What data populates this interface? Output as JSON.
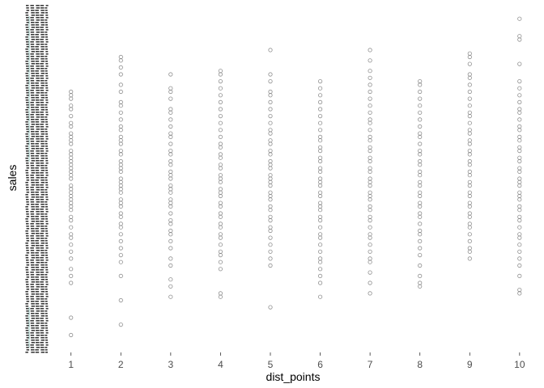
{
  "chart_data": {
    "type": "scatter",
    "title": "",
    "xlabel": "dist_points",
    "ylabel": "sales",
    "x_ticks": [
      1,
      2,
      3,
      4,
      5,
      6,
      7,
      8,
      9,
      10
    ],
    "y_tick_labels_note": "",
    "grid": false,
    "legend": "none",
    "xlim": [
      0.55,
      10.1
    ],
    "ylim": [
      0,
      1
    ],
    "marker": "open-circle",
    "series": [
      {
        "x": 1,
        "y": [
          0.05,
          0.1,
          0.2,
          0.22,
          0.24,
          0.27,
          0.29,
          0.31,
          0.33,
          0.34,
          0.36,
          0.38,
          0.39,
          0.41,
          0.42,
          0.43,
          0.44,
          0.45,
          0.46,
          0.47,
          0.48,
          0.5,
          0.51,
          0.52,
          0.53,
          0.54,
          0.55,
          0.56,
          0.57,
          0.58,
          0.6,
          0.61,
          0.62,
          0.63,
          0.65,
          0.66,
          0.68,
          0.7,
          0.71,
          0.73,
          0.74,
          0.75
        ]
      },
      {
        "x": 2,
        "y": [
          0.08,
          0.15,
          0.22,
          0.26,
          0.28,
          0.3,
          0.32,
          0.34,
          0.36,
          0.37,
          0.39,
          0.4,
          0.42,
          0.43,
          0.44,
          0.46,
          0.47,
          0.48,
          0.49,
          0.5,
          0.52,
          0.53,
          0.54,
          0.55,
          0.57,
          0.58,
          0.6,
          0.61,
          0.62,
          0.64,
          0.65,
          0.67,
          0.69,
          0.71,
          0.72,
          0.75,
          0.77,
          0.8,
          0.82,
          0.84,
          0.85
        ]
      },
      {
        "x": 3,
        "y": [
          0.16,
          0.19,
          0.21,
          0.25,
          0.27,
          0.3,
          0.32,
          0.34,
          0.35,
          0.37,
          0.38,
          0.4,
          0.42,
          0.43,
          0.44,
          0.46,
          0.47,
          0.48,
          0.5,
          0.51,
          0.52,
          0.54,
          0.55,
          0.57,
          0.58,
          0.6,
          0.62,
          0.63,
          0.65,
          0.67,
          0.69,
          0.7,
          0.73,
          0.75,
          0.76,
          0.8
        ]
      },
      {
        "x": 4,
        "y": [
          0.16,
          0.17,
          0.24,
          0.26,
          0.28,
          0.29,
          0.31,
          0.33,
          0.34,
          0.36,
          0.37,
          0.39,
          0.4,
          0.42,
          0.43,
          0.45,
          0.46,
          0.47,
          0.49,
          0.5,
          0.51,
          0.53,
          0.54,
          0.56,
          0.57,
          0.59,
          0.6,
          0.62,
          0.64,
          0.66,
          0.68,
          0.7,
          0.72,
          0.74,
          0.76,
          0.78,
          0.8,
          0.81
        ]
      },
      {
        "x": 5,
        "y": [
          0.13,
          0.25,
          0.27,
          0.29,
          0.31,
          0.33,
          0.35,
          0.36,
          0.38,
          0.39,
          0.41,
          0.42,
          0.44,
          0.45,
          0.46,
          0.48,
          0.49,
          0.5,
          0.51,
          0.53,
          0.54,
          0.55,
          0.57,
          0.58,
          0.6,
          0.61,
          0.63,
          0.64,
          0.66,
          0.68,
          0.7,
          0.72,
          0.74,
          0.75,
          0.78,
          0.8,
          0.87
        ]
      },
      {
        "x": 6,
        "y": [
          0.16,
          0.2,
          0.22,
          0.24,
          0.26,
          0.27,
          0.29,
          0.31,
          0.33,
          0.34,
          0.36,
          0.38,
          0.39,
          0.41,
          0.42,
          0.43,
          0.45,
          0.46,
          0.48,
          0.49,
          0.5,
          0.52,
          0.53,
          0.55,
          0.56,
          0.58,
          0.59,
          0.61,
          0.62,
          0.64,
          0.66,
          0.68,
          0.7,
          0.72,
          0.74,
          0.76,
          0.78
        ]
      },
      {
        "x": 7,
        "y": [
          0.17,
          0.2,
          0.23,
          0.26,
          0.27,
          0.29,
          0.31,
          0.33,
          0.34,
          0.36,
          0.38,
          0.39,
          0.41,
          0.42,
          0.44,
          0.45,
          0.46,
          0.48,
          0.49,
          0.5,
          0.52,
          0.53,
          0.55,
          0.56,
          0.58,
          0.59,
          0.61,
          0.62,
          0.64,
          0.66,
          0.67,
          0.69,
          0.71,
          0.73,
          0.75,
          0.77,
          0.79,
          0.81,
          0.84,
          0.87
        ]
      },
      {
        "x": 8,
        "y": [
          0.19,
          0.2,
          0.22,
          0.25,
          0.28,
          0.3,
          0.32,
          0.34,
          0.35,
          0.37,
          0.39,
          0.4,
          0.42,
          0.43,
          0.45,
          0.46,
          0.48,
          0.49,
          0.51,
          0.52,
          0.54,
          0.55,
          0.57,
          0.58,
          0.6,
          0.62,
          0.63,
          0.65,
          0.67,
          0.69,
          0.71,
          0.73,
          0.75,
          0.77,
          0.78
        ]
      },
      {
        "x": 9,
        "y": [
          0.27,
          0.29,
          0.3,
          0.32,
          0.34,
          0.36,
          0.37,
          0.39,
          0.4,
          0.42,
          0.43,
          0.45,
          0.46,
          0.48,
          0.49,
          0.51,
          0.52,
          0.54,
          0.55,
          0.57,
          0.58,
          0.6,
          0.61,
          0.63,
          0.64,
          0.66,
          0.68,
          0.69,
          0.71,
          0.73,
          0.75,
          0.77,
          0.79,
          0.8,
          0.83,
          0.85,
          0.86
        ]
      },
      {
        "x": 10,
        "y": [
          0.17,
          0.18,
          0.22,
          0.25,
          0.27,
          0.29,
          0.31,
          0.33,
          0.34,
          0.36,
          0.38,
          0.39,
          0.41,
          0.42,
          0.44,
          0.45,
          0.46,
          0.48,
          0.49,
          0.5,
          0.52,
          0.53,
          0.55,
          0.56,
          0.58,
          0.59,
          0.61,
          0.62,
          0.64,
          0.65,
          0.67,
          0.69,
          0.7,
          0.72,
          0.74,
          0.76,
          0.78,
          0.83,
          0.9,
          0.91,
          0.96
        ]
      }
    ]
  },
  "colors": {
    "point_stroke": "#6b6b6b",
    "tick_text": "#4d4d4d",
    "axis_title": "#000000",
    "background": "#ffffff"
  }
}
